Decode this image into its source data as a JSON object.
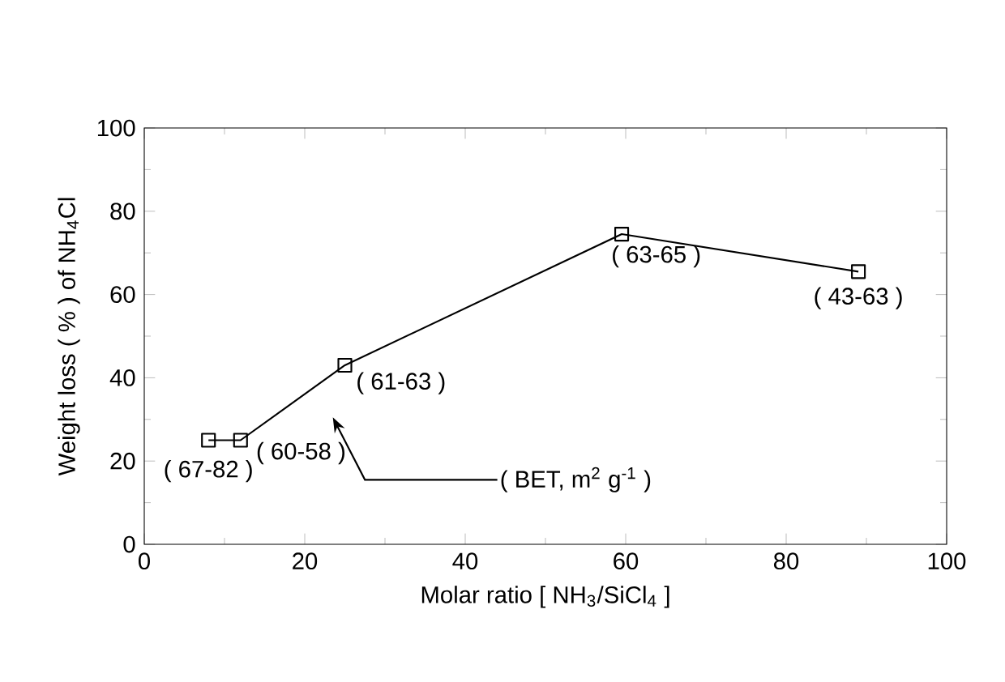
{
  "chart_data": {
    "type": "line",
    "xlabel": "Molar ratio [ NH$_{3}$/SiCl$_{4}$ ]",
    "ylabel": "Weight loss ( % ) of NH$_{4}$Cl",
    "x": [
      8,
      12,
      25,
      59.5,
      89
    ],
    "values": [
      25,
      25,
      43,
      74.5,
      65.5
    ],
    "color": "#000000",
    "marker": "square",
    "line_style": "solid",
    "xlim": [
      0,
      100
    ],
    "ylim": [
      0,
      100
    ],
    "xticks": [
      0,
      20,
      40,
      60,
      80,
      100
    ],
    "yticks": [
      0,
      20,
      40,
      60,
      80,
      100
    ],
    "grid": false,
    "annotations": [
      {
        "text": "( 67-82 )",
        "x": 8,
        "y": 25
      },
      {
        "text": "( 60-58 )",
        "x": 12,
        "y": 25
      },
      {
        "text": "( 61-63 )",
        "x": 25,
        "y": 43
      },
      {
        "text": "( 63-65 )",
        "x": 59.5,
        "y": 74.5
      },
      {
        "text": "( 43-63 )",
        "x": 89,
        "y": 65.5
      },
      "( BET, m$^{2}$ g$^{-1}$ )"
    ]
  }
}
